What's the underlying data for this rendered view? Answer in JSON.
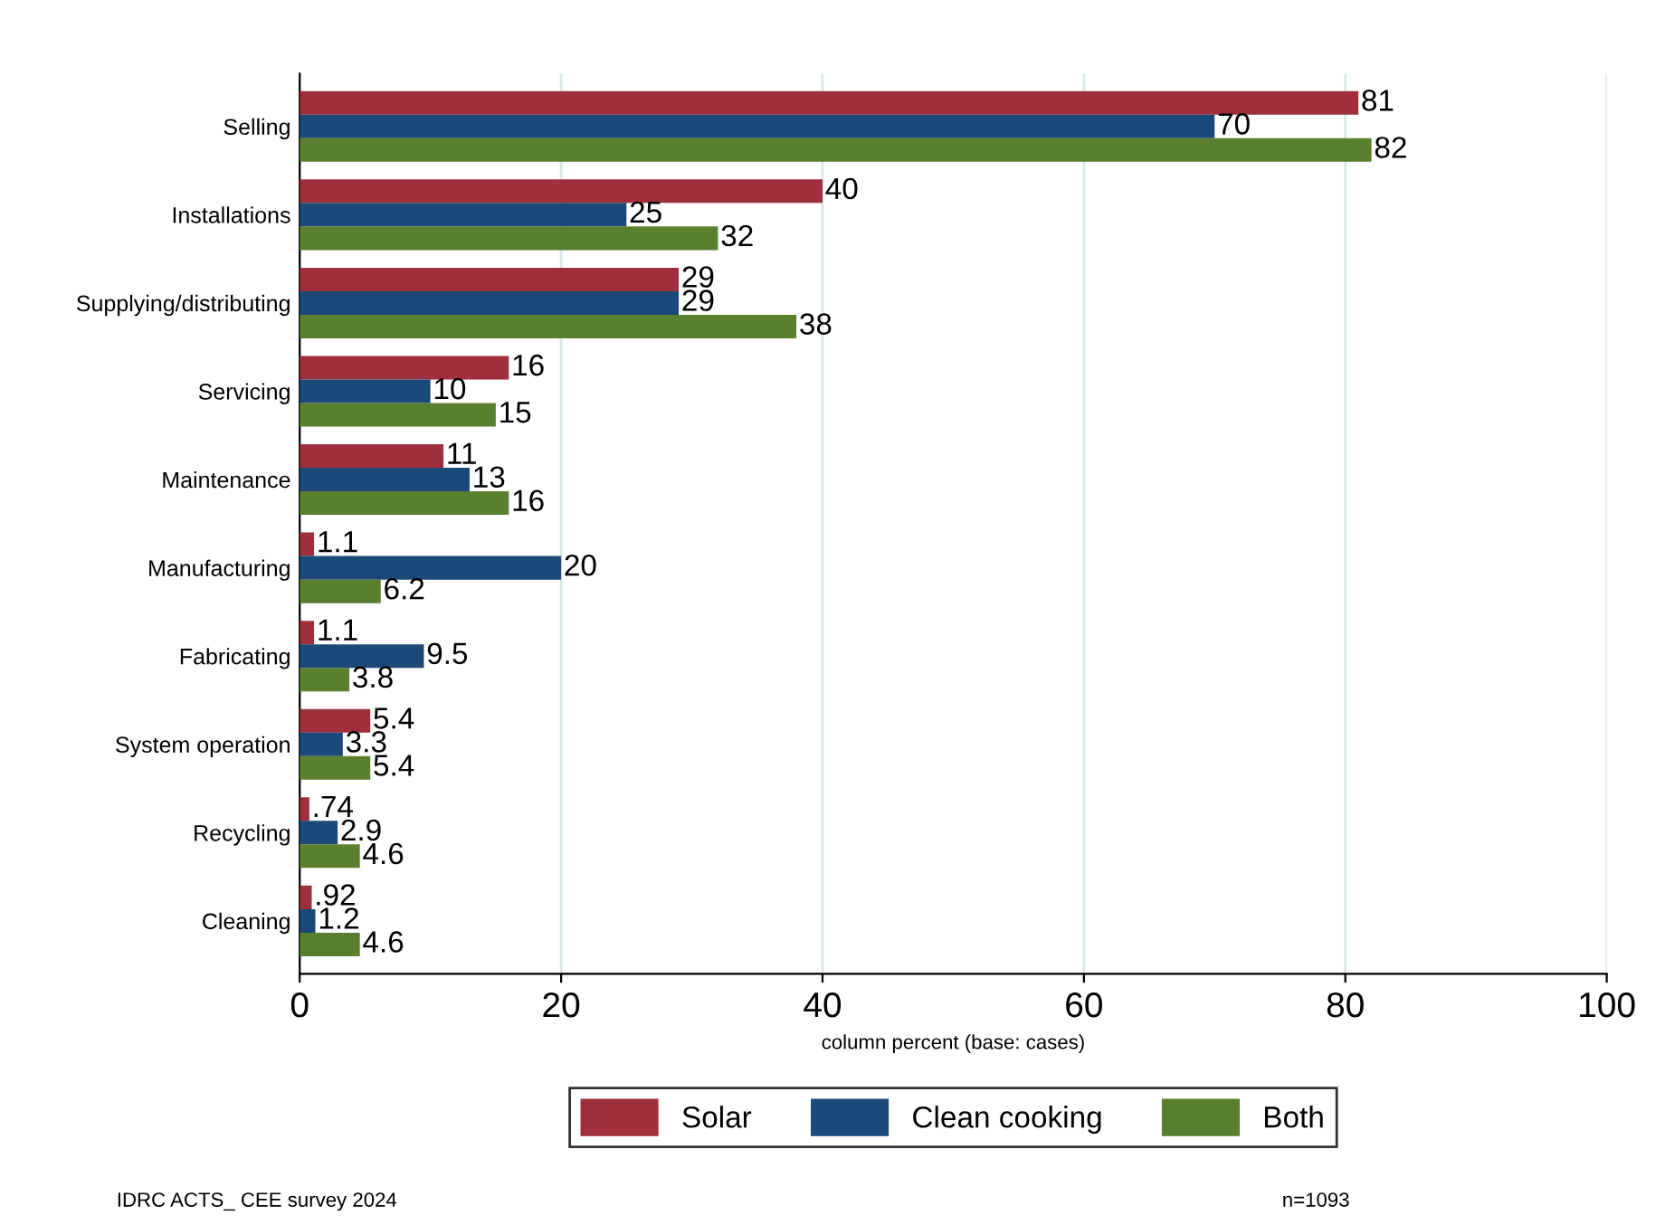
{
  "chart_data": {
    "type": "bar",
    "orientation": "horizontal",
    "xlabel": "column percent (base: cases)",
    "categories": [
      "Selling",
      "Installations",
      "Supplying/distributing",
      "Servicing",
      "Maintenance",
      "Manufacturing",
      "Fabricating",
      "System operation",
      "Recycling",
      "Cleaning"
    ],
    "series": [
      {
        "name": "Solar",
        "color": "#9e2f3b",
        "values": [
          81,
          40,
          29,
          16,
          11,
          1.1,
          1.1,
          5.4,
          0.74,
          0.92
        ],
        "value_labels": [
          "81",
          "40",
          "29",
          "16",
          "11",
          "1.1",
          "1.1",
          "5.4",
          ".74",
          ".92"
        ]
      },
      {
        "name": "Clean cooking",
        "color": "#1b4a7a",
        "values": [
          70,
          25,
          29,
          10,
          13,
          20,
          9.5,
          3.3,
          2.9,
          1.2
        ],
        "value_labels": [
          "70",
          "25",
          "29",
          "10",
          "13",
          "20",
          "9.5",
          "3.3",
          "2.9",
          "1.2"
        ]
      },
      {
        "name": "Both",
        "color": "#5a7f2f",
        "values": [
          82,
          32,
          38,
          15,
          16,
          6.2,
          3.8,
          5.4,
          4.6,
          4.6
        ],
        "value_labels": [
          "82",
          "32",
          "38",
          "15",
          "16",
          "6.2",
          "3.8",
          "5.4",
          "4.6",
          "4.6"
        ]
      }
    ],
    "xlim": [
      0,
      100
    ],
    "xticks": [
      0,
      20,
      40,
      60,
      80,
      100
    ],
    "grid": "x",
    "legend": "bottom",
    "annotations": [
      "IDRC ACTS_ CEE survey 2024",
      "n=1093"
    ]
  }
}
